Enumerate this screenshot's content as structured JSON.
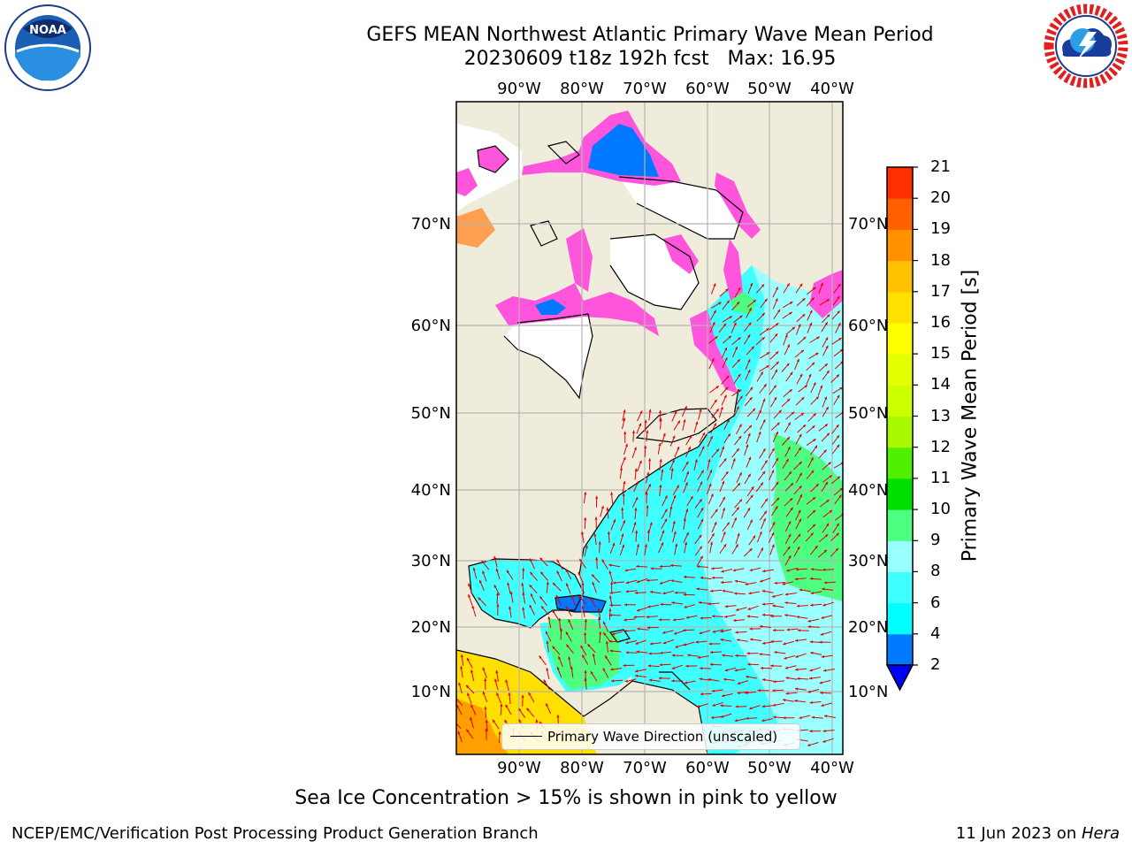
{
  "title": {
    "line1": "GEFS MEAN Northwest Atlantic Primary Wave Mean Period",
    "line2": "20230609 t18z 192h fcst   Max: 16.95"
  },
  "logos": {
    "left": {
      "name": "NOAA",
      "ring_text": "NATIONAL OCEANIC AND ATMOSPHERIC ADMINISTRATION · U.S. DEPARTMENT OF COMMERCE"
    },
    "right": {
      "name": "NATIONAL WEATHER SERVICE"
    }
  },
  "map": {
    "region": "Northwest Atlantic",
    "longitude_labels": [
      "90°W",
      "80°W",
      "70°W",
      "60°W",
      "50°W",
      "40°W"
    ],
    "latitude_labels": [
      "70°N",
      "60°N",
      "50°N",
      "40°N",
      "30°N",
      "20°N",
      "10°N"
    ],
    "colors": {
      "land": "#efecdc",
      "grid": "#b5b5b5",
      "arrow": "#e00000",
      "coast": "#000000"
    },
    "legend_label": "Primary Wave Direction (unscaled)",
    "footnote": "Sea Ice Concentration > 15% is shown in pink to yellow"
  },
  "colorbar": {
    "label": "Primary Wave Mean Period [s]",
    "tick_labels": [
      "2",
      "4",
      "6",
      "8",
      "9",
      "10",
      "11",
      "12",
      "13",
      "14",
      "15",
      "16",
      "17",
      "18",
      "19",
      "20",
      "21"
    ],
    "under_color": "#0000ff",
    "colors": [
      "#0078ff",
      "#00ffff",
      "#40ffff",
      "#99ffff",
      "#4dff80",
      "#00e000",
      "#50f000",
      "#a8f800",
      "#ccff00",
      "#e4ff00",
      "#ffff00",
      "#ffe000",
      "#ffc000",
      "#ff9000",
      "#ff6000",
      "#ff3000",
      "#ff0000"
    ]
  },
  "footer": {
    "left": "NCEP/EMC/Verification Post Processing Product Generation Branch",
    "right_date": "11 Jun 2023 on ",
    "right_machine": "Hera"
  }
}
